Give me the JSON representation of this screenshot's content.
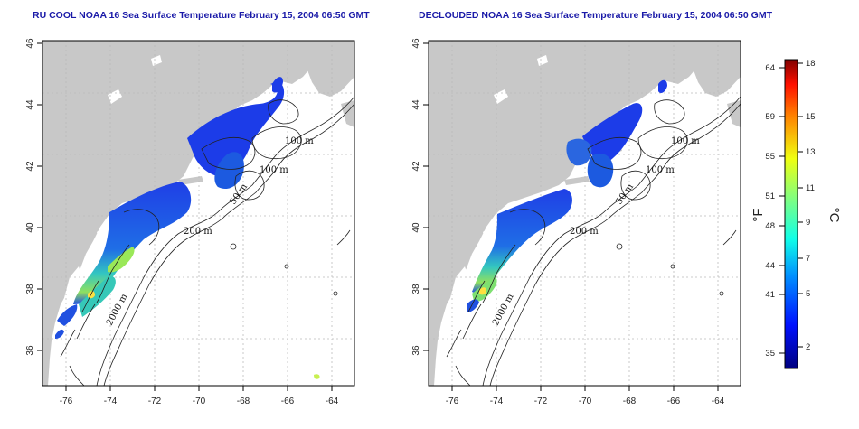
{
  "panels": [
    {
      "title": "RU COOL NOAA 16 Sea Surface Temperature February 15, 2004 06:50 GMT",
      "x_ticks": [
        "-76",
        "-74",
        "-72",
        "-70",
        "-68",
        "-66",
        "-64"
      ],
      "y_ticks": [
        "36",
        "38",
        "40",
        "42",
        "44",
        "46"
      ],
      "contour_labels": [
        "100 m",
        "100 m",
        "50 m",
        "200 m",
        "2000 m"
      ]
    },
    {
      "title": "DECLOUDED NOAA 16 Sea Surface Temperature February 15, 2004 06:50 GMT",
      "x_ticks": [
        "-76",
        "-74",
        "-72",
        "-70",
        "-68",
        "-66",
        "-64"
      ],
      "y_ticks": [
        "36",
        "38",
        "40",
        "42",
        "44",
        "46"
      ],
      "contour_labels": [
        "100 m",
        "100 m",
        "50 m",
        "200 m",
        "2000 m"
      ]
    }
  ],
  "colorbar": {
    "fahrenheit_ticks": [
      "64",
      "59",
      "55",
      "51",
      "48",
      "44",
      "41",
      "35"
    ],
    "celsius_ticks": [
      "18",
      "15",
      "13",
      "11",
      "9",
      "7",
      "5",
      "2"
    ],
    "fahrenheit_label": "°F",
    "celsius_label": "°C"
  },
  "colors": {
    "land": "#c8c8c8",
    "water": "#ffffff",
    "title": "#1a1aa8"
  }
}
